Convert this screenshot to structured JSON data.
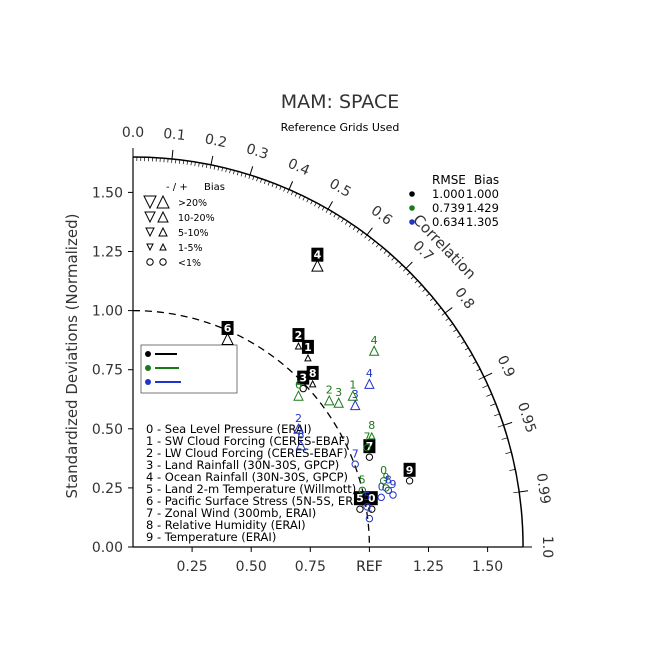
{
  "chart_data": {
    "type": "scatter",
    "title": "MAM: SPACE",
    "subtitle": "Reference Grids Used",
    "ylabel": "Standardized Deviations (Normalized)",
    "arc_label": "Correlation",
    "ref_label": "REF",
    "std_ticks": [
      "0.00",
      "0.25",
      "0.50",
      "0.75",
      "1.00",
      "1.25",
      "1.50"
    ],
    "x_ticks": [
      "0.25",
      "0.50",
      "0.75",
      "REF",
      "1.25",
      "1.50"
    ],
    "corr_ticks": [
      "0.0",
      "0.1",
      "0.2",
      "0.3",
      "0.4",
      "0.5",
      "0.6",
      "0.7",
      "0.8",
      "0.9",
      "0.95",
      "0.99",
      "1.0"
    ],
    "std_max": 1.65,
    "bias_legend": {
      "header": [
        "- / +",
        "Bias"
      ],
      "rows": [
        ">20%",
        "10-20%",
        "5-10%",
        "1-5%",
        "<1%"
      ]
    },
    "rmse_bias_header": [
      "RMSE",
      "Bias"
    ],
    "series": [
      {
        "color": "#000000",
        "rmse": "1.000",
        "bias": "1.000"
      },
      {
        "color": "#1a7a1a",
        "rmse": "0.739",
        "bias": "1.429"
      },
      {
        "color": "#2233cc",
        "rmse": "0.634",
        "bias": "1.305"
      }
    ],
    "variables": [
      "0 - Sea Level Pressure (ERAI)",
      "1 - SW Cloud Forcing (CERES-EBAF)",
      "2 - LW Cloud Forcing (CERES-EBAF)",
      "3 - Land Rainfall (30N-30S, GPCP)",
      "4 - Ocean Rainfall (30N-30S, GPCP)",
      "5 - Land 2-m Temperature (Willmott)",
      "6 - Pacific Surface Stress (5N-5S, ERS)",
      "7 - Zonal Wind (300mb, ERAI)",
      "8 - Relative Humidity (ERAI)",
      "9 - Temperature (ERAI)"
    ],
    "points": [
      {
        "series": 0,
        "label": "0",
        "x": 1.01,
        "y": 0.16,
        "marker": "circle"
      },
      {
        "series": 0,
        "label": "1",
        "x": 0.74,
        "y": 0.8,
        "marker": "up-small"
      },
      {
        "series": 0,
        "label": "2",
        "x": 0.7,
        "y": 0.85,
        "marker": "up-small"
      },
      {
        "series": 0,
        "label": "3",
        "x": 0.72,
        "y": 0.67,
        "marker": "circle"
      },
      {
        "series": 0,
        "label": "4",
        "x": 0.78,
        "y": 1.19,
        "marker": "up-big"
      },
      {
        "series": 0,
        "label": "5",
        "x": 0.96,
        "y": 0.16,
        "marker": "circle"
      },
      {
        "series": 0,
        "label": "6",
        "x": 0.4,
        "y": 0.88,
        "marker": "up-big"
      },
      {
        "series": 0,
        "label": "7",
        "x": 1.0,
        "y": 0.38,
        "marker": "circle"
      },
      {
        "series": 0,
        "label": "8",
        "x": 0.76,
        "y": 0.69,
        "marker": "up-small"
      },
      {
        "series": 0,
        "label": "9",
        "x": 1.17,
        "y": 0.28,
        "marker": "circle"
      },
      {
        "series": 1,
        "label": "0",
        "x": 1.06,
        "y": 0.28,
        "marker": "circle"
      },
      {
        "series": 1,
        "label": "1",
        "x": 0.93,
        "y": 0.64,
        "marker": "up-mid"
      },
      {
        "series": 1,
        "label": "2",
        "x": 0.83,
        "y": 0.62,
        "marker": "up-mid"
      },
      {
        "series": 1,
        "label": "3",
        "x": 0.87,
        "y": 0.61,
        "marker": "up-mid"
      },
      {
        "series": 1,
        "label": "4",
        "x": 1.02,
        "y": 0.83,
        "marker": "up-mid"
      },
      {
        "series": 1,
        "label": "5",
        "x": 0.97,
        "y": 0.24,
        "marker": "circle"
      },
      {
        "series": 1,
        "label": "6",
        "x": 0.7,
        "y": 0.64,
        "marker": "up-mid"
      },
      {
        "series": 1,
        "label": "7",
        "x": 0.99,
        "y": 0.42,
        "marker": "circle"
      },
      {
        "series": 1,
        "label": "8",
        "x": 1.01,
        "y": 0.47,
        "marker": "up-small"
      },
      {
        "series": 1,
        "label": "9",
        "x": 1.07,
        "y": 0.25,
        "marker": "circle"
      },
      {
        "series": 2,
        "label": "0",
        "x": 1.05,
        "y": 0.21,
        "marker": "circle"
      },
      {
        "series": 2,
        "label": "1",
        "x": 1.0,
        "y": 0.12,
        "marker": "circle"
      },
      {
        "series": 2,
        "label": "2",
        "x": 0.7,
        "y": 0.5,
        "marker": "up-mid"
      },
      {
        "series": 2,
        "label": "3",
        "x": 0.94,
        "y": 0.6,
        "marker": "up-mid"
      },
      {
        "series": 2,
        "label": "4",
        "x": 1.0,
        "y": 0.69,
        "marker": "up-mid"
      },
      {
        "series": 2,
        "label": "5",
        "x": 0.99,
        "y": 0.17,
        "marker": "circle"
      },
      {
        "series": 2,
        "label": "6",
        "x": 0.71,
        "y": 0.43,
        "marker": "up-mid"
      },
      {
        "series": 2,
        "label": "7",
        "x": 0.94,
        "y": 0.35,
        "marker": "circle"
      },
      {
        "series": 2,
        "label": "8",
        "x": 1.08,
        "y": 0.24,
        "marker": "circle"
      },
      {
        "series": 2,
        "label": "9",
        "x": 1.1,
        "y": 0.22,
        "marker": "circle"
      }
    ]
  }
}
